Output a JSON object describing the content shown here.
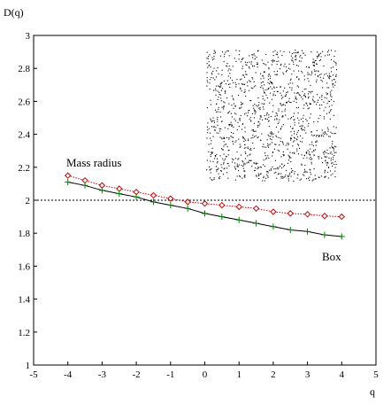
{
  "chart_data": {
    "type": "line",
    "title": "",
    "ylabel": "D(q)",
    "xlabel": "q",
    "xlim": [
      -5,
      5
    ],
    "ylim": [
      1,
      3
    ],
    "xticks": [
      "-5",
      "-4",
      "-3",
      "-2",
      "-1",
      "0",
      "1",
      "2",
      "3",
      "4",
      "5"
    ],
    "yticks": [
      "1",
      "1.2",
      "1.4",
      "1.6",
      "1.8",
      "2",
      "2.2",
      "2.4",
      "2.6",
      "2.8",
      "3"
    ],
    "reference_line": {
      "y": 2,
      "style": "dotted"
    },
    "x": [
      -4,
      -3.5,
      -3,
      -2.5,
      -2,
      -1.5,
      -1,
      -0.5,
      0,
      0.5,
      1,
      1.5,
      2,
      2.5,
      3,
      3.5,
      4
    ],
    "series": [
      {
        "name": "Mass radius",
        "color": "#cc0000",
        "marker": "diamond",
        "line": "dotted",
        "values": [
          2.15,
          2.12,
          2.09,
          2.07,
          2.05,
          2.03,
          2.01,
          1.99,
          1.98,
          1.97,
          1.96,
          1.95,
          1.93,
          1.92,
          1.915,
          1.905,
          1.9
        ]
      },
      {
        "name": "Box",
        "color": "#000000",
        "marker_color": "#008000",
        "marker": "plus",
        "line": "solid",
        "values": [
          2.11,
          2.09,
          2.06,
          2.04,
          2.02,
          1.99,
          1.97,
          1.95,
          1.92,
          1.9,
          1.88,
          1.86,
          1.84,
          1.82,
          1.81,
          1.79,
          1.78
        ]
      }
    ],
    "annotations": [
      "Mass radius",
      "Box"
    ],
    "inset": {
      "type": "point-cloud",
      "description_color": "#000000"
    }
  }
}
